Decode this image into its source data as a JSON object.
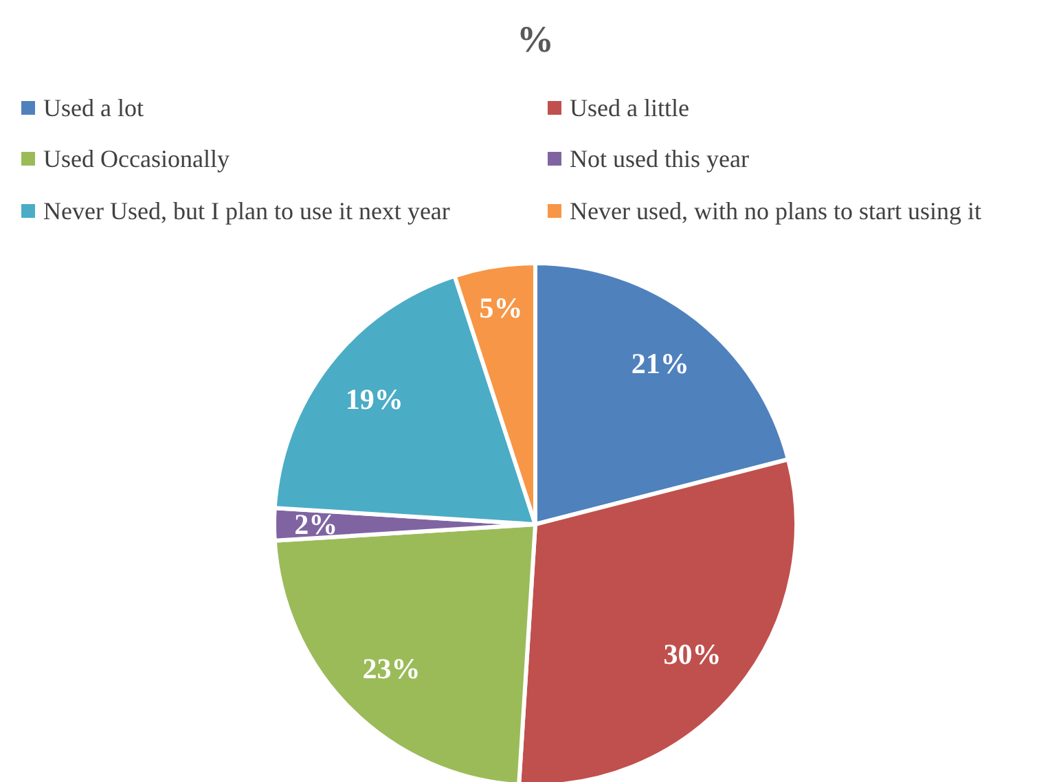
{
  "chart_data": {
    "type": "pie",
    "title": "%",
    "categories": [
      "Used a lot",
      "Used a little",
      "Used Occasionally",
      "Not used this year",
      "Never Used, but I plan to use it next year",
      "Never used, with no plans to start using it"
    ],
    "values": [
      21,
      30,
      23,
      2,
      19,
      5
    ],
    "colors": [
      "#4f81bd",
      "#c0504d",
      "#9bbb59",
      "#8064a2",
      "#4bacc6",
      "#f79646"
    ],
    "value_labels": [
      "21%",
      "30%",
      "23%",
      "2%",
      "19%",
      "5%"
    ],
    "legend": "top"
  }
}
